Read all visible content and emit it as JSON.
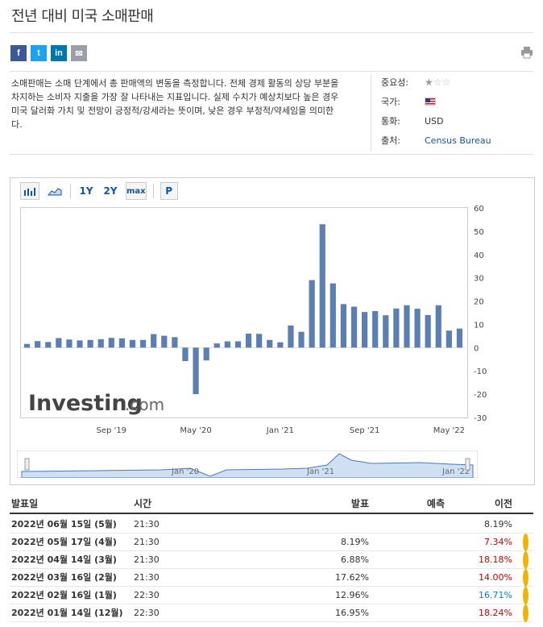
{
  "title": "전년 대비 미국 소매판매",
  "share": [
    "f",
    "t",
    "in",
    "✉"
  ],
  "description": "소매판매는 소매 단계에서 총 판매액의 변동을 측정합니다. 전체 경제 활동의 상당 부분을 차지하는 소비자 지출을 가장 잘 나타내는 지표입니다. 실제 수치가 예상치보다 높은 경우 미국 달러화 가치 및 전망이 긍정적/강세라는 뜻이며, 낮은 경우 부정적/약세임을 의미한다.",
  "meta": {
    "importance_label": "중요성:",
    "importance_stars": 1,
    "country_label": "국가:",
    "currency_label": "통화:",
    "currency": "USD",
    "source_label": "출처:",
    "source": "Census Bureau"
  },
  "toolbar": {
    "range_1y": "1Y",
    "range_2y": "2Y",
    "range_max": "max",
    "p": "P"
  },
  "watermark": {
    "brand": "Investing",
    "suffix": ".com"
  },
  "chart_data": {
    "type": "bar",
    "ylim": [
      -30,
      60
    ],
    "yticks": [
      60,
      50,
      40,
      30,
      20,
      10,
      0,
      -10,
      -20,
      -30
    ],
    "x_tick_labels": [
      {
        "label": "Sep '19",
        "index": 8
      },
      {
        "label": "May '20",
        "index": 16
      },
      {
        "label": "Jan '21",
        "index": 24
      },
      {
        "label": "Sep '21",
        "index": 32
      },
      {
        "label": "May '22",
        "index": 40
      }
    ],
    "values": [
      1.6,
      2.8,
      2.4,
      4.1,
      3.5,
      3.1,
      3.3,
      3.6,
      4.2,
      4.0,
      3.3,
      3.3,
      5.8,
      5.1,
      4.5,
      -5.8,
      -20.0,
      -5.5,
      1.8,
      2.7,
      2.7,
      6.0,
      5.9,
      3.3,
      2.3,
      9.5,
      6.8,
      29.0,
      53.0,
      27.6,
      18.7,
      17.6,
      15.3,
      15.7,
      13.9,
      16.8,
      18.2,
      16.7,
      14.0,
      18.2,
      7.3,
      8.2
    ],
    "color": "#5b7fb0",
    "navigator_labels": [
      "Jan '20",
      "Jan '21",
      "Jan '22"
    ]
  },
  "table": {
    "headers": {
      "date": "발표일",
      "time": "시간",
      "actual": "발표",
      "forecast": "예측",
      "previous": "이전"
    },
    "rows": [
      {
        "date": "2022년 06월 15일 (5월)",
        "time": "21:30",
        "actual": "",
        "forecast": "",
        "previous": "8.19%",
        "prev_color": "",
        "dot": false
      },
      {
        "date": "2022년 05월 17일 (4월)",
        "time": "21:30",
        "actual": "8.19%",
        "forecast": "",
        "previous": "7.34%",
        "prev_color": "red",
        "dot": true
      },
      {
        "date": "2022년 04월 14일 (3월)",
        "time": "21:30",
        "actual": "6.88%",
        "forecast": "",
        "previous": "18.18%",
        "prev_color": "red",
        "dot": true
      },
      {
        "date": "2022년 03월 16일 (2월)",
        "time": "21:30",
        "actual": "17.62%",
        "forecast": "",
        "previous": "14.00%",
        "prev_color": "red",
        "dot": true
      },
      {
        "date": "2022년 02월 16일 (1월)",
        "time": "22:30",
        "actual": "12.96%",
        "forecast": "",
        "previous": "16.71%",
        "prev_color": "blue",
        "dot": true
      },
      {
        "date": "2022년 01월 14일 (12월)",
        "time": "22:30",
        "actual": "16.95%",
        "forecast": "",
        "previous": "18.24%",
        "prev_color": "red",
        "dot": true
      }
    ]
  }
}
